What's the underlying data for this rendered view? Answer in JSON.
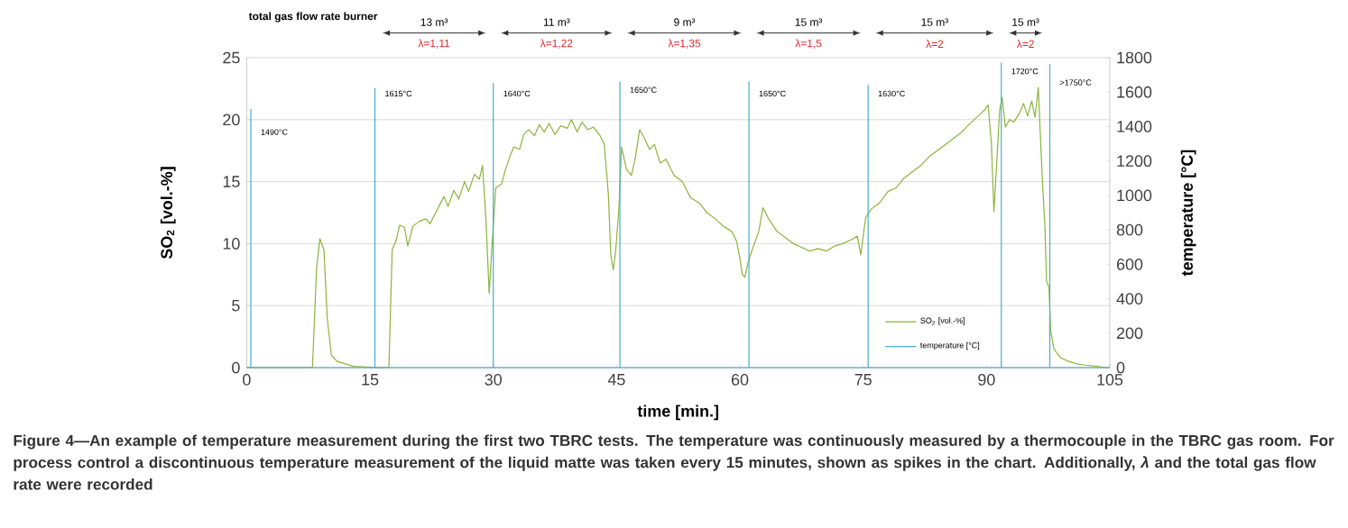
{
  "chart_data": {
    "type": "line",
    "xlabel": "time [min.]",
    "ylabel": "SO$_{2}$ [vol.-%]",
    "y2label": "temperature [°C]",
    "xlim": [
      0,
      105
    ],
    "xticks": [
      0,
      15,
      30,
      45,
      60,
      75,
      90,
      105
    ],
    "ylim": [
      0,
      25
    ],
    "yticks": [
      0,
      5,
      10,
      15,
      20,
      25
    ],
    "y2lim": [
      0,
      1800
    ],
    "y2ticks": [
      0,
      200,
      400,
      600,
      800,
      1000,
      1200,
      1400,
      1600,
      1800
    ],
    "grid": "y",
    "legend": "bottom right",
    "series": [
      {
        "name": "SO$_{2}$ [vol.-%]",
        "color": "#8db43c",
        "x": [
          0,
          8,
          8.5,
          8.9,
          9.4,
          9.8,
          10.3,
          11,
          13,
          16,
          17.3,
          17.7,
          18.2,
          18.6,
          19.2,
          19.6,
          20.2,
          21,
          21.8,
          22.3,
          23,
          24,
          24.5,
          25.2,
          25.8,
          26.5,
          27,
          27.7,
          28.3,
          28.7,
          29.1,
          29.5,
          29.9,
          30.3,
          31,
          31.5,
          32,
          32.5,
          33.2,
          33.7,
          34.3,
          35,
          35.6,
          36.2,
          36.8,
          37.5,
          38.2,
          39,
          39.5,
          40.2,
          40.8,
          41.5,
          42.2,
          43,
          43.5,
          44,
          44.3,
          44.6,
          44.9,
          45.3,
          45.6,
          46.2,
          46.8,
          47.3,
          47.8,
          48.4,
          49,
          49.6,
          50.3,
          51,
          52,
          53,
          54,
          55,
          56,
          57,
          58,
          59,
          59.6,
          60,
          60.3,
          60.6,
          61,
          61.5,
          62.3,
          62.8,
          63.5,
          64.5,
          65.5,
          66.5,
          67.5,
          68.5,
          69.5,
          70.5,
          71.5,
          72.5,
          73.5,
          74.3,
          74.7,
          75,
          75.3,
          76,
          77,
          78,
          79,
          80,
          81,
          82,
          83,
          84,
          85,
          86,
          87,
          88,
          89,
          89.8,
          90.2,
          90.6,
          90.9,
          91.2,
          91.6,
          91.9,
          92.3,
          92.8,
          93.3,
          94,
          94.5,
          95,
          95.5,
          95.9,
          96.3,
          96.8,
          97.1,
          97.3,
          97.6,
          97.8,
          98.2,
          99,
          100,
          101,
          102,
          103.5,
          104.5,
          105
        ],
        "values": [
          0,
          0,
          8,
          10.4,
          9.5,
          4,
          1,
          0.5,
          0.1,
          0,
          0,
          9.5,
          10.3,
          11.5,
          11.3,
          9.8,
          11.4,
          11.8,
          12,
          11.6,
          12.5,
          13.8,
          13,
          14.3,
          13.6,
          15,
          14.2,
          15.6,
          15.2,
          16.3,
          12,
          6,
          10.5,
          14.5,
          14.8,
          16,
          17,
          17.8,
          17.6,
          18.8,
          19.2,
          18.7,
          19.6,
          19,
          19.7,
          18.8,
          19.5,
          19.3,
          20,
          19,
          19.8,
          19.2,
          19.4,
          18.7,
          18,
          14,
          9,
          7.9,
          9.5,
          13,
          17.8,
          16,
          15.5,
          17,
          19.2,
          18.5,
          17.6,
          18,
          16.5,
          16.8,
          15.5,
          15,
          13.7,
          13.3,
          12.5,
          12,
          11.4,
          11,
          10.2,
          8.8,
          7.5,
          7.3,
          8.5,
          9.5,
          11,
          12.9,
          12,
          11,
          10.5,
          10,
          9.7,
          9.4,
          9.6,
          9.4,
          9.8,
          10,
          10.3,
          10.6,
          9.1,
          10.6,
          12.1,
          12.8,
          13.3,
          14.2,
          14.5,
          15.3,
          15.8,
          16.3,
          17,
          17.5,
          18,
          18.5,
          19,
          19.7,
          20.3,
          20.8,
          21.2,
          18,
          12.6,
          16,
          20.8,
          21.8,
          19.4,
          20,
          19.8,
          20.5,
          21.3,
          20.3,
          21.5,
          20.2,
          22.6,
          15,
          11.5,
          7,
          6.5,
          3,
          1.5,
          0.8,
          0.5,
          0.3,
          0.2,
          0.1,
          0,
          0
        ]
      },
      {
        "name": "temperature [°C]",
        "color": "#4bacc6",
        "axis": "y2",
        "x": [
          0,
          0.5,
          0.5,
          0.5,
          15.6,
          15.6,
          15.6,
          30,
          30,
          30,
          45.4,
          45.4,
          45.4,
          61.1,
          61.1,
          61.1,
          75.6,
          75.6,
          75.6,
          91.8,
          91.8,
          91.8,
          97.7,
          97.7,
          97.7,
          105
        ],
        "values": [
          0,
          0,
          1500,
          0,
          0,
          1620,
          0,
          0,
          1650,
          0,
          0,
          1660,
          0,
          0,
          1660,
          0,
          0,
          1640,
          0,
          0,
          1770,
          0,
          0,
          1760,
          0,
          0
        ]
      }
    ],
    "annotations": [
      "Figure 4—An example of temperature measurement during the first two TBRC tests. The temperature was continuously measured by a thermocouple in the TBRC gas room. For process control a discontinuous temperature measurement of the liquid matte was taken every 15 minutes, shown as spikes in the chart. Additionally, *λ* and the total gas flow rate were recorded",
      "total gas flow rate burner",
      "13 m³",
      "λ=1,11",
      "11 m³",
      "λ=1,22",
      "9 m³",
      "λ=1,35",
      "15 m³",
      "λ=1,5",
      "15 m³",
      "λ=2",
      "15 m³",
      "λ=2",
      {
        "text": "1490°C",
        "x": 0.5,
        "y": 19
      },
      {
        "text": "1615°C",
        "x": 15.6,
        "y": 22.1
      },
      {
        "text": "1640°C",
        "x": 30,
        "y": 22.1
      },
      {
        "text": "1650°C",
        "x": 45.4,
        "y": 22.4
      },
      {
        "text": "1650°C",
        "x": 61.1,
        "y": 22.1
      },
      {
        "text": "1630°C",
        "x": 75.6,
        "y": 22.1
      },
      {
        "text": "1720°C",
        "x": 91.8,
        "y": 23.9
      },
      {
        "text": ">1750°C",
        "x": 97.7,
        "y": 23
      }
    ]
  }
}
